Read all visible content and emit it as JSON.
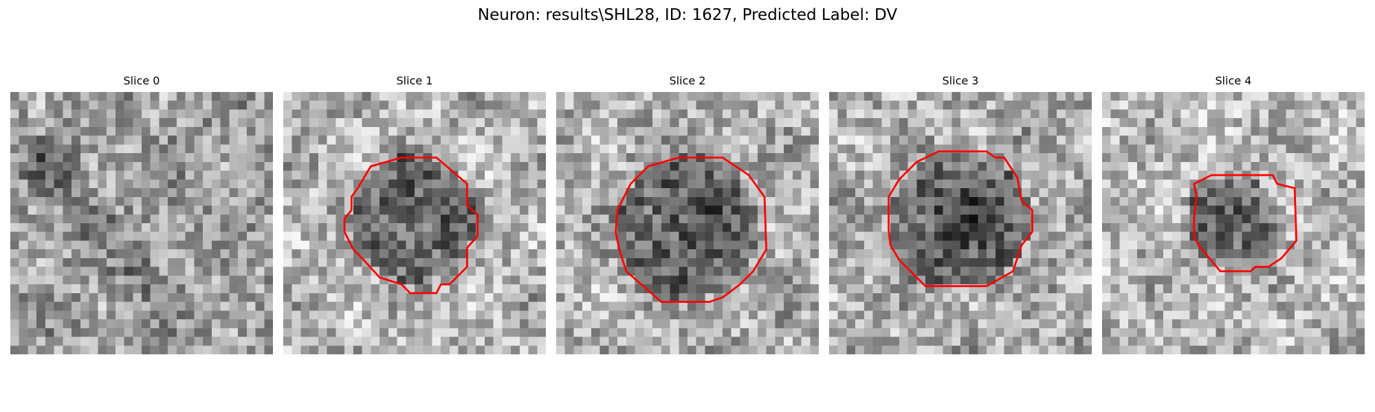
{
  "figure": {
    "title": "Neuron: results\\SHL28, ID: 1627, Predicted Label: DV",
    "contour_color": "#ff0000",
    "colormap": "gray"
  },
  "slices": [
    {
      "title": "Slice 0",
      "has_contour": false
    },
    {
      "title": "Slice 1",
      "has_contour": true
    },
    {
      "title": "Slice 2",
      "has_contour": true
    },
    {
      "title": "Slice 3",
      "has_contour": true
    },
    {
      "title": "Slice 4",
      "has_contour": true
    }
  ]
}
